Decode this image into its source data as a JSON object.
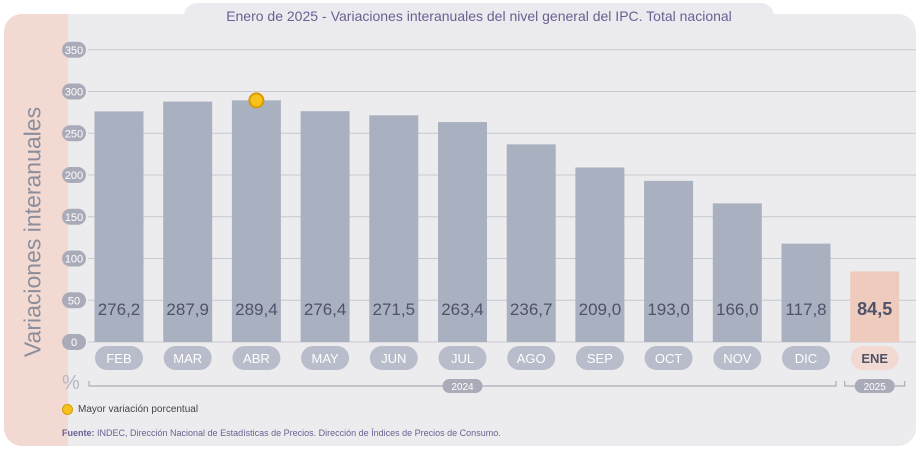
{
  "header": {
    "period": "Enero de 2025",
    "separator": "-",
    "title": "Variaciones interanuales del nivel general del IPC. Total nacional"
  },
  "chart_data": {
    "type": "bar",
    "ylabel": "Variaciones interanuales",
    "unit": "%",
    "ylim": [
      0,
      350
    ],
    "yticks": [
      "0",
      "50",
      "100",
      "150",
      "200",
      "250",
      "300",
      "350"
    ],
    "grid": true,
    "categories": [
      "FEB",
      "MAR",
      "ABR",
      "MAY",
      "JUN",
      "JUL",
      "AGO",
      "SEP",
      "OCT",
      "NOV",
      "DIC",
      "ENE"
    ],
    "values": [
      276.2,
      287.9,
      289.4,
      276.4,
      271.5,
      263.4,
      236.7,
      209.0,
      193.0,
      166.0,
      117.8,
      84.5
    ],
    "value_labels": [
      "276,2",
      "287,9",
      "289,4",
      "276,4",
      "271,5",
      "263,4",
      "236,7",
      "209,0",
      "193,0",
      "166,0",
      "117,8",
      "84,5"
    ],
    "year_groups": [
      {
        "label": "2024",
        "from": 0,
        "to": 10
      },
      {
        "label": "2025",
        "from": 11,
        "to": 11
      }
    ],
    "highlight_index": 11,
    "max_marker_index": 2,
    "colors": {
      "bar": "#a9b1c0",
      "bar_highlight": "#efcbbd",
      "label": "#4f5368",
      "label_highlight": "#4f5368",
      "cat_pill": "#b9bccb",
      "cat_pill_highlight": "#f2d9d1",
      "cat_text": "#ffffff",
      "cat_text_highlight": "#4f5368",
      "tick_pill": "#aaabb8",
      "grid": "#c7c8d0",
      "marker_fill": "#f7c21c",
      "marker_stroke": "#d99a00"
    }
  },
  "legend": {
    "label": "Mayor variación porcentual"
  },
  "source": {
    "label": "Fuente:",
    "text": "INDEC, Dirección Nacional de Estadísticas de Precios. Dirección de Índices de Precios de Consumo."
  }
}
